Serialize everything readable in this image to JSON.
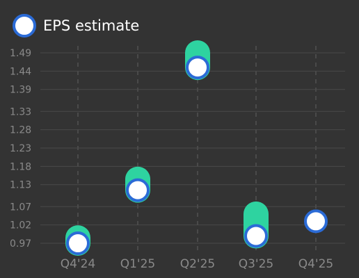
{
  "chart_data": {
    "type": "scatter",
    "categories": [
      "Q4'24",
      "Q1'25",
      "Q2'25",
      "Q3'25",
      "Q4'25"
    ],
    "series": [
      {
        "name": "EPS estimate",
        "values": [
          0.97,
          1.115,
          1.45,
          0.99,
          1.03
        ]
      }
    ],
    "range_bars": [
      {
        "low": 0.97,
        "high": 0.985
      },
      {
        "low": 1.115,
        "high": 1.145
      },
      {
        "low": 1.45,
        "high": 1.49
      },
      {
        "low": 0.99,
        "high": 1.05
      },
      null
    ],
    "yticks": [
      0.97,
      1.02,
      1.07,
      1.13,
      1.18,
      1.23,
      1.28,
      1.33,
      1.39,
      1.44,
      1.49
    ],
    "ytick_labels": [
      "0.97",
      "1.02",
      "1.07",
      "1.13",
      "1.18",
      "1.23",
      "1.28",
      "1.33",
      "1.39",
      "1.44",
      "1.49"
    ],
    "ylim": [
      0.97,
      1.49
    ],
    "grid": true,
    "legend_position": "top-left",
    "colors": {
      "background": "#333333",
      "grid": "#4a4a4a",
      "range_bar": "#2ed3a0",
      "marker_fill": "#ffffff",
      "marker_stroke": "#2b6bd6",
      "tick_text": "#8a8a8a",
      "legend_text": "#ffffff"
    }
  }
}
